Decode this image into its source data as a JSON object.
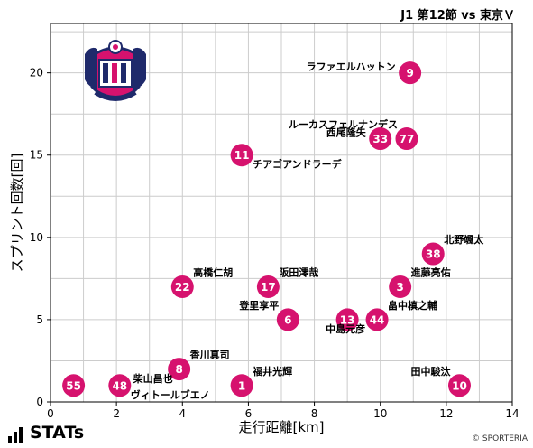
{
  "header": {
    "title": "J1 第12節 vs 東京Ｖ"
  },
  "footer": {
    "brand": "STATs",
    "copyright": "© SPORTERIA"
  },
  "colors": {
    "marker": "#d6126e",
    "grid": "#cccccc",
    "logo_pink": "#d6126e",
    "logo_navy": "#1f2a6b"
  },
  "chart_data": {
    "type": "scatter",
    "title": "J1 第12節 vs 東京Ｖ",
    "xlabel": "走行距離[km]",
    "ylabel": "スプリント回数[回]",
    "xlim": [
      0,
      14
    ],
    "ylim": [
      0,
      23
    ],
    "xticks": [
      "0",
      "2",
      "4",
      "6",
      "8",
      "10",
      "12",
      "14"
    ],
    "yticks": [
      "0",
      "5",
      "10",
      "15",
      "20"
    ],
    "grid": true,
    "points": [
      {
        "number": "9",
        "name": "ラファエルハットン",
        "x": 10.9,
        "y": 20,
        "label_side": "left"
      },
      {
        "number": "77",
        "name": "ルーカスフェルナンデス",
        "x": 10.8,
        "y": 16,
        "label_side": "upleft"
      },
      {
        "number": "33",
        "name": "西尾隆矢",
        "x": 10.0,
        "y": 16,
        "label_side": "left"
      },
      {
        "number": "11",
        "name": "チアゴアンドラーデ",
        "x": 5.8,
        "y": 15,
        "label_side": "downright"
      },
      {
        "number": "38",
        "name": "北野颯太",
        "x": 11.6,
        "y": 9,
        "label_side": "upright"
      },
      {
        "number": "3",
        "name": "進藤亮佑",
        "x": 10.6,
        "y": 7,
        "label_side": "upright"
      },
      {
        "number": "22",
        "name": "高橋仁胡",
        "x": 4.0,
        "y": 7,
        "label_side": "upright"
      },
      {
        "number": "17",
        "name": "阪田澪哉",
        "x": 6.6,
        "y": 7,
        "label_side": "upright"
      },
      {
        "number": "6",
        "name": "登里享平",
        "x": 7.2,
        "y": 5,
        "label_side": "upleft"
      },
      {
        "number": "13",
        "name": "中島元彦",
        "x": 9.0,
        "y": 5,
        "label_side": "down"
      },
      {
        "number": "44",
        "name": "畠中槙之輔",
        "x": 9.9,
        "y": 5,
        "label_side": "upright"
      },
      {
        "number": "8",
        "name": "香川真司",
        "x": 3.9,
        "y": 2,
        "label_side": "upright"
      },
      {
        "number": "55",
        "name": "柴山昌也",
        "x": 0.7,
        "y": 1,
        "label_side": "upright_far"
      },
      {
        "number": "48",
        "name": "ヴィトールブエノ",
        "x": 2.1,
        "y": 1,
        "label_side": "downright"
      },
      {
        "number": "1",
        "name": "福井光輝",
        "x": 5.8,
        "y": 1,
        "label_side": "upright"
      },
      {
        "number": "10",
        "name": "田中駿汰",
        "x": 12.4,
        "y": 1,
        "label_side": "upleft"
      }
    ]
  }
}
